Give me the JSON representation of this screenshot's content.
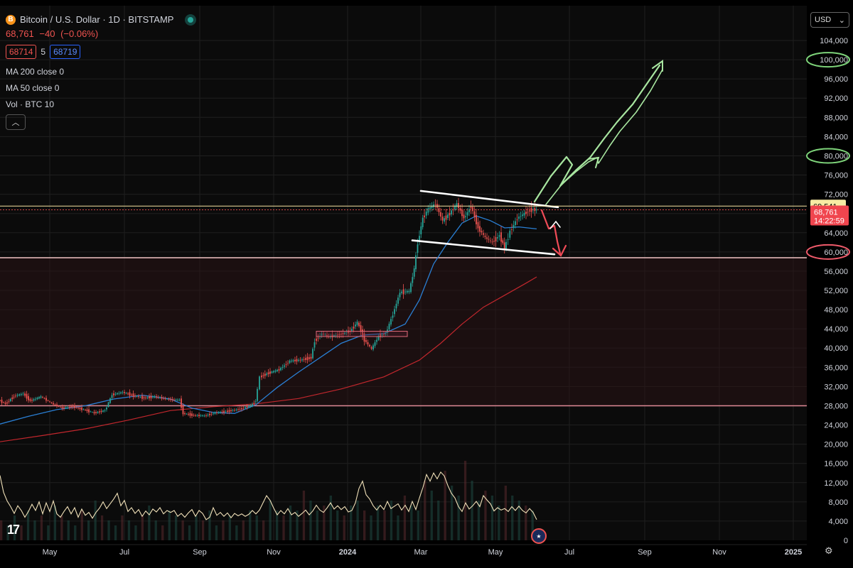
{
  "header": {
    "symbol_title": "Bitcoin / U.S. Dollar · 1D · BITSTAMP",
    "badge": "B",
    "last": "68,761",
    "change": "−40",
    "change_pct": "(−0.06%)",
    "bid": "68714",
    "spread": "5",
    "ask": "68719"
  },
  "indicators": [
    "MA 200 close 0",
    "MA 50 close 0",
    "Vol · BTC 10"
  ],
  "currency": "USD",
  "chart_data": {
    "type": "candlestick",
    "y_ticks": [
      0,
      4000,
      8000,
      12000,
      16000,
      20000,
      24000,
      28000,
      32000,
      36000,
      40000,
      44000,
      48000,
      52000,
      56000,
      60000,
      64000,
      68000,
      72000,
      76000,
      80000,
      84000,
      88000,
      92000,
      96000,
      100000,
      104000
    ],
    "y_tick_labels": [
      "0",
      "4,000",
      "8,000",
      "12,000",
      "16,000",
      "20,000",
      "24,000",
      "28,000",
      "32,000",
      "36,000",
      "40,000",
      "44,000",
      "48,000",
      "52,000",
      "56,000",
      "60,000",
      "64,000",
      "68,000",
      "72,000",
      "76,000",
      "80,000",
      "84,000",
      "88,000",
      "92,000",
      "96,000",
      "100,000",
      "104,000"
    ],
    "x_labels": [
      "May",
      "Jul",
      "Sep",
      "Nov",
      "2024",
      "Mar",
      "May",
      "Jul",
      "Sep",
      "Nov",
      "2025"
    ],
    "price_path": [
      [
        0,
        29200
      ],
      [
        10,
        28400
      ],
      [
        22,
        30000
      ],
      [
        35,
        30500
      ],
      [
        45,
        29000
      ],
      [
        60,
        29900
      ],
      [
        75,
        28500
      ],
      [
        90,
        27500
      ],
      [
        105,
        27800
      ],
      [
        120,
        27200
      ],
      [
        135,
        26500
      ],
      [
        150,
        27000
      ],
      [
        160,
        30300
      ],
      [
        175,
        30800
      ],
      [
        190,
        30100
      ],
      [
        205,
        29600
      ],
      [
        220,
        29900
      ],
      [
        240,
        29300
      ],
      [
        255,
        29200
      ],
      [
        260,
        26400
      ],
      [
        275,
        26000
      ],
      [
        290,
        25900
      ],
      [
        305,
        26500
      ],
      [
        320,
        26800
      ],
      [
        340,
        27300
      ],
      [
        355,
        28000
      ],
      [
        362,
        29000
      ],
      [
        368,
        34000
      ],
      [
        380,
        34800
      ],
      [
        395,
        35500
      ],
      [
        410,
        37300
      ],
      [
        425,
        37500
      ],
      [
        440,
        38000
      ],
      [
        445,
        41500
      ],
      [
        455,
        43000
      ],
      [
        465,
        42400
      ],
      [
        480,
        42800
      ],
      [
        495,
        43500
      ],
      [
        505,
        45400
      ],
      [
        515,
        41700
      ],
      [
        525,
        39800
      ],
      [
        535,
        42500
      ],
      [
        545,
        43000
      ],
      [
        555,
        47000
      ],
      [
        565,
        51600
      ],
      [
        578,
        51800
      ],
      [
        585,
        56500
      ],
      [
        590,
        62000
      ],
      [
        597,
        67000
      ],
      [
        605,
        69000
      ],
      [
        615,
        70000
      ],
      [
        625,
        66500
      ],
      [
        635,
        68000
      ],
      [
        645,
        70000
      ],
      [
        655,
        67000
      ],
      [
        665,
        69500
      ],
      [
        675,
        65000
      ],
      [
        685,
        63000
      ],
      [
        695,
        62000
      ],
      [
        705,
        63500
      ],
      [
        712,
        60800
      ],
      [
        720,
        64300
      ],
      [
        730,
        67000
      ],
      [
        740,
        68000
      ],
      [
        750,
        68800
      ],
      [
        757,
        68761
      ]
    ],
    "ma50_path": [
      [
        0,
        24200
      ],
      [
        40,
        25800
      ],
      [
        80,
        27200
      ],
      [
        120,
        28000
      ],
      [
        160,
        29400
      ],
      [
        200,
        30200
      ],
      [
        240,
        29400
      ],
      [
        270,
        27500
      ],
      [
        300,
        26600
      ],
      [
        330,
        26400
      ],
      [
        360,
        28200
      ],
      [
        390,
        31800
      ],
      [
        420,
        35000
      ],
      [
        450,
        38000
      ],
      [
        480,
        41000
      ],
      [
        510,
        42700
      ],
      [
        540,
        43000
      ],
      [
        570,
        45000
      ],
      [
        590,
        50000
      ],
      [
        610,
        57500
      ],
      [
        630,
        62000
      ],
      [
        650,
        66000
      ],
      [
        670,
        67500
      ],
      [
        690,
        66500
      ],
      [
        710,
        65000
      ],
      [
        730,
        65200
      ],
      [
        755,
        64800
      ]
    ],
    "ma200_path": [
      [
        0,
        20500
      ],
      [
        60,
        21800
      ],
      [
        120,
        23200
      ],
      [
        180,
        25000
      ],
      [
        240,
        27000
      ],
      [
        300,
        27800
      ],
      [
        360,
        28400
      ],
      [
        420,
        29500
      ],
      [
        480,
        31500
      ],
      [
        540,
        34000
      ],
      [
        590,
        37500
      ],
      [
        620,
        41000
      ],
      [
        650,
        45000
      ],
      [
        680,
        48500
      ],
      [
        710,
        51000
      ],
      [
        740,
        53500
      ],
      [
        755,
        54800
      ]
    ],
    "volume_osc_path": [
      [
        0,
        13500
      ],
      [
        5,
        10000
      ],
      [
        10,
        8200
      ],
      [
        15,
        7000
      ],
      [
        20,
        5600
      ],
      [
        25,
        7200
      ],
      [
        30,
        6200
      ],
      [
        35,
        4800
      ],
      [
        40,
        6000
      ],
      [
        45,
        7500
      ],
      [
        50,
        6200
      ],
      [
        55,
        8000
      ],
      [
        60,
        5500
      ],
      [
        65,
        7800
      ],
      [
        70,
        6000
      ],
      [
        75,
        8200
      ],
      [
        80,
        5500
      ],
      [
        85,
        4800
      ],
      [
        90,
        6000
      ],
      [
        95,
        7000
      ],
      [
        100,
        5500
      ],
      [
        105,
        6800
      ],
      [
        110,
        4800
      ],
      [
        115,
        6500
      ],
      [
        120,
        5200
      ],
      [
        125,
        5800
      ],
      [
        130,
        4600
      ],
      [
        135,
        5800
      ],
      [
        140,
        6700
      ],
      [
        145,
        8000
      ],
      [
        150,
        6600
      ],
      [
        155,
        7600
      ],
      [
        160,
        8600
      ],
      [
        165,
        9800
      ],
      [
        170,
        7200
      ],
      [
        175,
        8300
      ],
      [
        180,
        6000
      ],
      [
        185,
        6800
      ],
      [
        190,
        5600
      ],
      [
        195,
        6400
      ],
      [
        200,
        5000
      ],
      [
        205,
        6100
      ],
      [
        210,
        5300
      ],
      [
        215,
        6500
      ],
      [
        220,
        5900
      ],
      [
        225,
        6800
      ],
      [
        230,
        5500
      ],
      [
        235,
        6200
      ],
      [
        240,
        5800
      ],
      [
        245,
        6200
      ],
      [
        250,
        5000
      ],
      [
        255,
        5600
      ],
      [
        260,
        4800
      ],
      [
        265,
        5700
      ],
      [
        270,
        6400
      ],
      [
        275,
        5000
      ],
      [
        280,
        6200
      ],
      [
        285,
        5600
      ],
      [
        290,
        4300
      ],
      [
        295,
        4800
      ],
      [
        300,
        6800
      ],
      [
        305,
        5200
      ],
      [
        310,
        5800
      ],
      [
        315,
        5000
      ],
      [
        320,
        5700
      ],
      [
        325,
        4700
      ],
      [
        330,
        5600
      ],
      [
        335,
        5100
      ],
      [
        340,
        5500
      ],
      [
        345,
        5000
      ],
      [
        350,
        5400
      ],
      [
        355,
        6200
      ],
      [
        360,
        5500
      ],
      [
        365,
        6300
      ],
      [
        370,
        7800
      ],
      [
        375,
        9300
      ],
      [
        380,
        8300
      ],
      [
        385,
        6700
      ],
      [
        390,
        5300
      ],
      [
        395,
        6200
      ],
      [
        400,
        5500
      ],
      [
        405,
        6600
      ],
      [
        410,
        5300
      ],
      [
        415,
        5800
      ],
      [
        420,
        5000
      ],
      [
        425,
        5600
      ],
      [
        430,
        6300
      ],
      [
        435,
        5300
      ],
      [
        440,
        6100
      ],
      [
        445,
        7300
      ],
      [
        450,
        6300
      ],
      [
        455,
        5800
      ],
      [
        460,
        6700
      ],
      [
        465,
        7800
      ],
      [
        470,
        6500
      ],
      [
        475,
        7200
      ],
      [
        480,
        6400
      ],
      [
        485,
        7000
      ],
      [
        490,
        5900
      ],
      [
        495,
        6200
      ],
      [
        500,
        7800
      ],
      [
        505,
        10800
      ],
      [
        510,
        12300
      ],
      [
        515,
        9500
      ],
      [
        520,
        8600
      ],
      [
        525,
        7200
      ],
      [
        530,
        6300
      ],
      [
        535,
        7300
      ],
      [
        540,
        6400
      ],
      [
        545,
        8100
      ],
      [
        550,
        6600
      ],
      [
        555,
        7100
      ],
      [
        560,
        7600
      ],
      [
        565,
        6300
      ],
      [
        570,
        7300
      ],
      [
        575,
        6000
      ],
      [
        580,
        8100
      ],
      [
        585,
        6400
      ],
      [
        590,
        8800
      ],
      [
        595,
        11000
      ],
      [
        600,
        13700
      ],
      [
        605,
        12300
      ],
      [
        610,
        14000
      ],
      [
        615,
        12800
      ],
      [
        620,
        14200
      ],
      [
        625,
        13400
      ],
      [
        630,
        11400
      ],
      [
        635,
        9800
      ],
      [
        640,
        8800
      ],
      [
        645,
        7000
      ],
      [
        650,
        6000
      ],
      [
        655,
        7800
      ],
      [
        660,
        6500
      ],
      [
        665,
        7200
      ],
      [
        670,
        8100
      ],
      [
        675,
        7000
      ],
      [
        680,
        9300
      ],
      [
        685,
        8400
      ],
      [
        690,
        7600
      ],
      [
        695,
        6100
      ],
      [
        700,
        6800
      ],
      [
        705,
        6300
      ],
      [
        710,
        6600
      ],
      [
        715,
        6000
      ],
      [
        720,
        7000
      ],
      [
        725,
        6200
      ],
      [
        730,
        7100
      ],
      [
        735,
        6200
      ],
      [
        740,
        5700
      ],
      [
        745,
        6600
      ],
      [
        750,
        5800
      ],
      [
        755,
        4300
      ]
    ],
    "volume_bars": [
      4,
      3,
      5,
      3,
      6,
      4,
      5,
      3,
      7,
      5,
      4,
      3,
      6,
      4,
      8,
      5,
      4,
      3,
      5,
      4,
      3,
      5,
      7,
      4,
      3,
      6,
      5,
      4,
      3,
      5,
      4,
      6,
      3,
      4,
      5,
      3,
      4,
      6,
      5,
      4,
      8,
      6,
      5,
      7,
      6,
      10,
      8,
      6,
      7,
      9,
      6,
      5,
      7,
      8,
      6,
      5,
      7,
      6,
      8,
      5,
      9,
      7,
      6,
      12,
      10,
      8,
      14,
      11,
      9,
      16,
      12,
      8,
      10,
      9,
      7,
      11,
      9,
      8,
      7,
      6
    ],
    "resistance_line": 69541,
    "last_price": 68761,
    "countdown": "14:22:59",
    "annotations": {
      "resistance_label": "69,541",
      "price_label": "68,761",
      "zone_top": 58800,
      "zone_bottom": 28000,
      "consolidation_box": [
        445,
        43500,
        573,
        42400
      ],
      "upper_channel": [
        [
          592,
          72700
        ],
        [
          785,
          69300
        ]
      ],
      "lower_channel": [
        [
          580,
          62400
        ],
        [
          780,
          59500
        ]
      ],
      "circled_levels": [
        100000,
        80000,
        60000
      ]
    }
  }
}
